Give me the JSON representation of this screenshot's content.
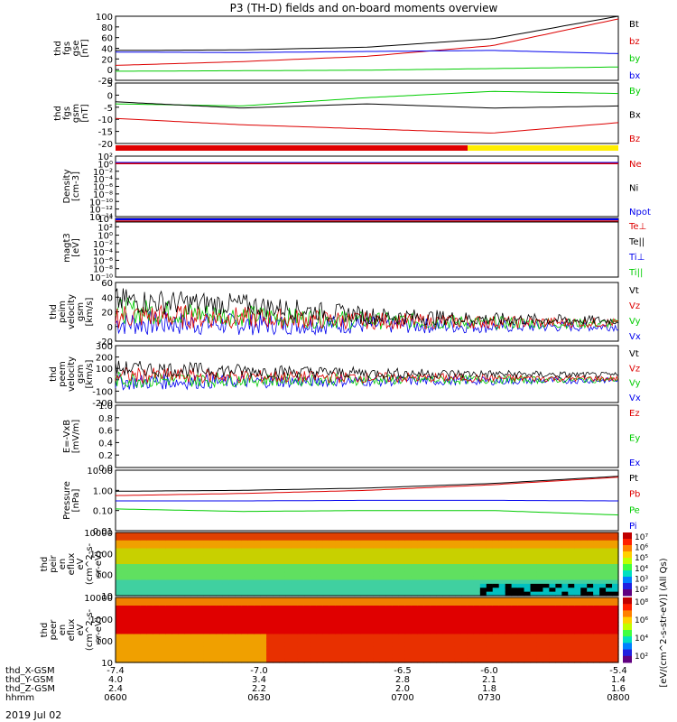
{
  "title": "P3 (TH-D) fields and on-board moments overview",
  "date_label": "2019 Jul 02",
  "colorbar_label": "[eV/(cm^2-s-str-eV)] (All Qs)",
  "colors": {
    "black": "#000000",
    "red": "#dd0000",
    "green": "#00cc00",
    "blue": "#0000ee",
    "yellow": "#ffee00"
  },
  "panels": [
    {
      "id": "fgs-gse",
      "ylabel": [
        "thd",
        "fgs",
        "gse",
        "[nT]"
      ],
      "ticks": [
        "100",
        "80",
        "60",
        "40",
        "20",
        "0",
        "-20"
      ],
      "legend": [
        {
          "text": "Bt",
          "color": "black"
        },
        {
          "text": "bz",
          "color": "red"
        },
        {
          "text": "by",
          "color": "green"
        },
        {
          "text": "bx",
          "color": "blue"
        }
      ]
    },
    {
      "id": "fgs-gsm",
      "ylabel": [
        "thd",
        "fgs",
        "gsm",
        "[nT]"
      ],
      "ticks": [
        "5",
        "0",
        "-5",
        "-10",
        "-15",
        "-20"
      ],
      "legend": [
        {
          "text": "By",
          "color": "green"
        },
        {
          "text": "Bx",
          "color": "black"
        },
        {
          "text": "Bz",
          "color": "red"
        }
      ]
    },
    {
      "id": "mode-bar",
      "ylabel": [],
      "ticks": [],
      "legend": []
    },
    {
      "id": "density",
      "ylabel": [
        "Density",
        "[cm-3]"
      ],
      "ticks": [
        "10²",
        "10⁰",
        "10⁻²",
        "10⁻⁴",
        "10⁻⁶",
        "10⁻⁸",
        "10⁻¹⁰",
        "10⁻¹²",
        "10⁻¹⁴"
      ],
      "legend": [
        {
          "text": "Ne",
          "color": "red"
        },
        {
          "text": "Ni",
          "color": "black"
        },
        {
          "text": "Npot",
          "color": "blue"
        }
      ]
    },
    {
      "id": "temp",
      "ylabel": [
        "magt3",
        "[eV]"
      ],
      "ticks": [
        "10⁴",
        "10²",
        "10⁰",
        "10⁻²",
        "10⁻⁴",
        "10⁻⁶",
        "10⁻⁸",
        "10⁻¹⁰"
      ],
      "legend": [
        {
          "text": "Te⊥",
          "color": "red"
        },
        {
          "text": "Te||",
          "color": "black"
        },
        {
          "text": "Ti⊥",
          "color": "blue"
        },
        {
          "text": "Ti||",
          "color": "green"
        }
      ]
    },
    {
      "id": "peim-vel",
      "ylabel": [
        "thd",
        "peim",
        "velocity",
        "gsm",
        "[km/s]"
      ],
      "ticks": [
        "60",
        "40",
        "20",
        "0",
        "-20"
      ],
      "legend": [
        {
          "text": "Vt",
          "color": "black"
        },
        {
          "text": "Vz",
          "color": "red"
        },
        {
          "text": "Vy",
          "color": "green"
        },
        {
          "text": "Vx",
          "color": "blue"
        }
      ]
    },
    {
      "id": "peem-vel",
      "ylabel": [
        "thd",
        "peem",
        "velocity",
        "gsm",
        "[km/s]"
      ],
      "ticks": [
        "300",
        "200",
        "100",
        "0",
        "-100",
        "-200"
      ],
      "legend": [
        {
          "text": "Vt",
          "color": "black"
        },
        {
          "text": "Vz",
          "color": "red"
        },
        {
          "text": "Vy",
          "color": "green"
        },
        {
          "text": "Vx",
          "color": "blue"
        }
      ]
    },
    {
      "id": "efield",
      "ylabel": [
        "E=-VxB",
        "[mV/m]"
      ],
      "ticks": [
        "1.0",
        "0.8",
        "0.6",
        "0.4",
        "0.2",
        "0.0"
      ],
      "legend": [
        {
          "text": "Ez",
          "color": "red"
        },
        {
          "text": "Ey",
          "color": "green"
        },
        {
          "text": "Ex",
          "color": "blue"
        }
      ]
    },
    {
      "id": "pressure",
      "ylabel": [
        "Pressure",
        "[nPa]"
      ],
      "ticks": [
        "10.00",
        "1.00",
        "0.10",
        "0.01"
      ],
      "legend": [
        {
          "text": "Pt",
          "color": "black"
        },
        {
          "text": "Pb",
          "color": "red"
        },
        {
          "text": "Pe",
          "color": "green"
        },
        {
          "text": "Pi",
          "color": "blue"
        }
      ]
    },
    {
      "id": "peir",
      "ylabel": [
        "thd",
        "peir",
        "en",
        "eflux",
        "eV",
        "(cm^2-s-",
        "sr-eV)"
      ],
      "ticks": [
        "10000",
        "1000",
        "100",
        "10"
      ],
      "legend": [],
      "cbar_ticks": [
        "10⁷",
        "10⁶",
        "10⁵",
        "10⁴",
        "10³",
        "10²"
      ]
    },
    {
      "id": "peer",
      "ylabel": [
        "thd",
        "peer",
        "en",
        "eflux",
        "eV",
        "(cm^2-s-",
        "sr-eV)"
      ],
      "ticks": [
        "10000",
        "1000",
        "100",
        "10"
      ],
      "legend": [],
      "cbar_ticks": [
        "10⁸",
        "10⁶",
        "10⁴",
        "10²"
      ]
    }
  ],
  "x_axis": {
    "rows": [
      {
        "label": "thd_X-GSM",
        "values": [
          "-7.4",
          "-7.0",
          "-6.5",
          "-6.0",
          "-5.4"
        ]
      },
      {
        "label": "thd_Y-GSM",
        "values": [
          "4.0",
          "3.4",
          "2.8",
          "2.1",
          "1.4"
        ]
      },
      {
        "label": "thd_Z-GSM",
        "values": [
          "2.4",
          "2.2",
          "2.0",
          "1.8",
          "1.6"
        ]
      },
      {
        "label": "hhmm",
        "values": [
          "0600",
          "0630",
          "0700",
          "0730",
          "0800"
        ]
      }
    ]
  },
  "chart_data": {
    "type": "line",
    "x": [
      "0600",
      "0630",
      "0700",
      "0730",
      "0800"
    ],
    "fgs_gse": {
      "ylim": [
        -20,
        100
      ],
      "series": [
        {
          "name": "Bt",
          "values": [
            36,
            37,
            42,
            58,
            100
          ]
        },
        {
          "name": "bz",
          "values": [
            8,
            15,
            25,
            45,
            95
          ]
        },
        {
          "name": "by",
          "values": [
            33,
            32,
            34,
            36,
            30
          ]
        },
        {
          "name": "bx",
          "values": [
            -3,
            -2,
            -1,
            2,
            5
          ]
        }
      ]
    },
    "fgs_gsm": {
      "ylim": [
        -22,
        7
      ],
      "series": [
        {
          "name": "By",
          "values": [
            -3,
            -4,
            0,
            3,
            2
          ]
        },
        {
          "name": "Bx",
          "values": [
            -2,
            -5,
            -3,
            -5,
            -4
          ]
        },
        {
          "name": "Bz",
          "values": [
            -10,
            -13,
            -15,
            -17,
            -12
          ]
        }
      ]
    },
    "pressure": {
      "ylim": [
        0.01,
        10
      ],
      "log": true,
      "series": [
        {
          "name": "Pt",
          "values": [
            0.9,
            1.0,
            1.3,
            2.2,
            5.0
          ]
        },
        {
          "name": "Pb",
          "values": [
            0.55,
            0.7,
            1.0,
            1.9,
            4.5
          ]
        },
        {
          "name": "Pe",
          "values": [
            0.12,
            0.09,
            0.1,
            0.1,
            0.06
          ]
        },
        {
          "name": "Pi",
          "values": [
            0.3,
            0.3,
            0.32,
            0.32,
            0.3
          ]
        }
      ]
    },
    "peim_velocity": {
      "ylim": [
        -20,
        60
      ],
      "series": [
        {
          "name": "Vt",
          "values": [
            35,
            30,
            15,
            10,
            8
          ]
        },
        {
          "name": "Vz",
          "values": [
            15,
            12,
            8,
            6,
            5
          ]
        },
        {
          "name": "Vy",
          "values": [
            22,
            15,
            8,
            5,
            4
          ]
        },
        {
          "name": "Vx",
          "values": [
            5,
            3,
            2,
            0,
            0
          ]
        }
      ]
    },
    "peem_velocity": {
      "ylim": [
        -200,
        300
      ],
      "series": [
        {
          "name": "Vt",
          "values": [
            100,
            80,
            60,
            50,
            40
          ]
        },
        {
          "name": "Vz",
          "values": [
            40,
            30,
            20,
            15,
            10
          ]
        },
        {
          "name": "Vy",
          "values": [
            0,
            0,
            0,
            0,
            0
          ]
        },
        {
          "name": "Vx",
          "values": [
            -20,
            -15,
            -10,
            -10,
            -5
          ]
        }
      ]
    }
  }
}
